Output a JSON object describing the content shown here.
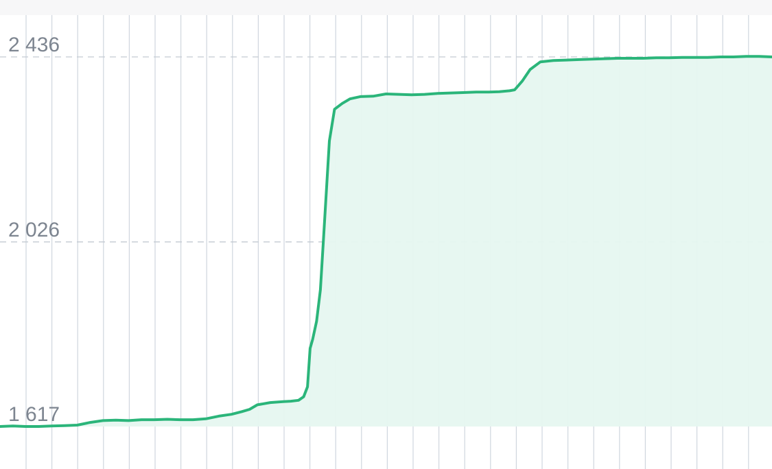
{
  "chart_data": {
    "type": "area",
    "title": "",
    "xlabel": "",
    "ylabel": "",
    "ylim": [
      1617,
      2436
    ],
    "y_ticks": [
      {
        "value": 2436,
        "label": "2 436"
      },
      {
        "value": 2026,
        "label": "2 026"
      },
      {
        "value": 1617,
        "label": "1 617"
      }
    ],
    "x_categories": 30,
    "grid": "on",
    "legend": "none",
    "series": [
      {
        "x": [
          0,
          0.5,
          1,
          1.5,
          2,
          2.5,
          3,
          3.5,
          4,
          4.5,
          5,
          5.5,
          6,
          6.5,
          7,
          7.5,
          8,
          8.5,
          9,
          9.4,
          9.7,
          10,
          10.5,
          11,
          11.3,
          11.6,
          11.8,
          11.95,
          12.05,
          12.15,
          12.3,
          12.45,
          12.6,
          12.8,
          13,
          13.3,
          13.6,
          14,
          14.5,
          15,
          15.5,
          16,
          16.5,
          17,
          17.5,
          18,
          18.5,
          19,
          19.4,
          19.8,
          20,
          20.3,
          20.6,
          21,
          21.5,
          22,
          22.5,
          23,
          23.5,
          24,
          24.5,
          25,
          25.5,
          26,
          26.5,
          27,
          27.5,
          28,
          28.5,
          29,
          29.5,
          30
        ],
        "values": [
          1617,
          1618,
          1617,
          1617,
          1618,
          1619,
          1620,
          1626,
          1630,
          1631,
          1630,
          1632,
          1632,
          1633,
          1632,
          1632,
          1634,
          1640,
          1644,
          1650,
          1655,
          1665,
          1670,
          1672,
          1673,
          1675,
          1683,
          1705,
          1790,
          1810,
          1850,
          1920,
          2060,
          2250,
          2320,
          2333,
          2343,
          2348,
          2349,
          2354,
          2353,
          2352,
          2353,
          2355,
          2356,
          2357,
          2358,
          2358,
          2359,
          2361,
          2363,
          2383,
          2408,
          2425,
          2428,
          2429,
          2430,
          2431,
          2432,
          2433,
          2433,
          2433,
          2434,
          2434,
          2435,
          2435,
          2435,
          2436,
          2436,
          2437,
          2437,
          2436
        ],
        "color": "#2bb57a",
        "fill": "#e6f7f0"
      }
    ]
  }
}
